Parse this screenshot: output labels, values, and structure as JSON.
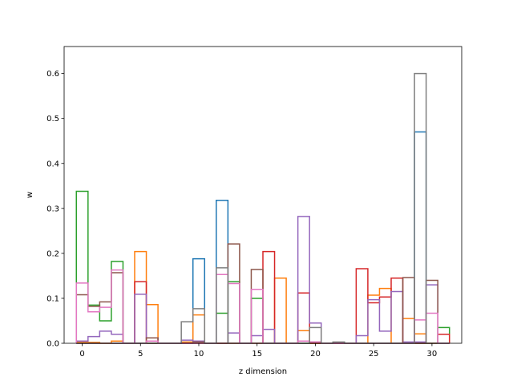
{
  "chart_data": {
    "type": "step",
    "xlabel": "z dimension",
    "ylabel": "w",
    "xlim": [
      -1.55,
      32.55
    ],
    "ylim": [
      0,
      0.66
    ],
    "x_ticks": [
      0,
      5,
      10,
      15,
      20,
      25,
      30
    ],
    "y_ticks": [
      0.0,
      0.1,
      0.2,
      0.3,
      0.4,
      0.5,
      0.6
    ],
    "y_tick_labels": [
      "0.0",
      "0.1",
      "0.2",
      "0.3",
      "0.4",
      "0.5",
      "0.6"
    ],
    "grid": false,
    "series": [
      {
        "color": "#1f77b4",
        "values": [
          0,
          0,
          0,
          0,
          0,
          0,
          0,
          0,
          0,
          0,
          0.188,
          0,
          0.318,
          0,
          0,
          0,
          0,
          0,
          0,
          0,
          0,
          0,
          0,
          0,
          0,
          0,
          0,
          0,
          0,
          0.47,
          0,
          0
        ]
      },
      {
        "color": "#ff7f0e",
        "values": [
          0.002,
          0.002,
          0,
          0.005,
          0,
          0.204,
          0.086,
          0,
          0,
          0.003,
          0.063,
          0,
          0,
          0,
          0,
          0,
          0,
          0.145,
          0,
          0.028,
          0,
          0,
          0,
          0,
          0,
          0.107,
          0.122,
          0,
          0.055,
          0.021,
          0,
          0
        ]
      },
      {
        "color": "#2ca02c",
        "values": [
          0.338,
          0.085,
          0.05,
          0.182,
          0,
          0,
          0,
          0,
          0,
          0,
          0,
          0,
          0.067,
          0.137,
          0,
          0.1,
          0,
          0,
          0,
          0,
          0,
          0,
          0,
          0,
          0,
          0,
          0,
          0,
          0,
          0,
          0,
          0.035
        ]
      },
      {
        "color": "#d62728",
        "values": [
          0,
          0,
          0,
          0,
          0,
          0.137,
          0,
          0,
          0,
          0,
          0,
          0,
          0,
          0,
          0,
          0,
          0.204,
          0,
          0,
          0.112,
          0,
          0,
          0,
          0,
          0.166,
          0.09,
          0.103,
          0.145,
          0,
          0,
          0,
          0.02
        ]
      },
      {
        "color": "#9467bd",
        "values": [
          0.005,
          0.015,
          0.027,
          0.02,
          0,
          0.109,
          0.012,
          0,
          0,
          0.007,
          0.005,
          0,
          0,
          0.023,
          0,
          0.017,
          0.031,
          0,
          0,
          0.282,
          0.045,
          0,
          0,
          0,
          0.017,
          0.097,
          0.027,
          0.115,
          0.003,
          0.003,
          0.13,
          0
        ]
      },
      {
        "color": "#8c564b",
        "values": [
          0.108,
          0.082,
          0.092,
          0.157,
          0,
          0,
          0.012,
          0,
          0,
          0,
          0.003,
          0,
          0,
          0.221,
          0,
          0.164,
          0,
          0,
          0,
          0,
          0.003,
          0,
          0,
          0,
          0,
          0,
          0,
          0,
          0.146,
          0,
          0.14,
          0
        ]
      },
      {
        "color": "#e377c2",
        "values": [
          0.134,
          0.07,
          0.08,
          0.163,
          0,
          0,
          0.005,
          0,
          0,
          0,
          0,
          0,
          0.153,
          0.133,
          0,
          0.12,
          0,
          0,
          0,
          0.005,
          0.003,
          0,
          0,
          0,
          0,
          0,
          0,
          0,
          0,
          0.052,
          0.067,
          0
        ]
      },
      {
        "color": "#7f7f7f",
        "values": [
          0,
          0,
          0,
          0,
          0,
          0,
          0,
          0,
          0,
          0.048,
          0.077,
          0,
          0.168,
          0,
          0,
          0,
          0,
          0,
          0,
          0,
          0.035,
          0,
          0.003,
          0,
          0,
          0,
          0,
          0,
          0,
          0.6,
          0,
          0
        ]
      }
    ]
  }
}
